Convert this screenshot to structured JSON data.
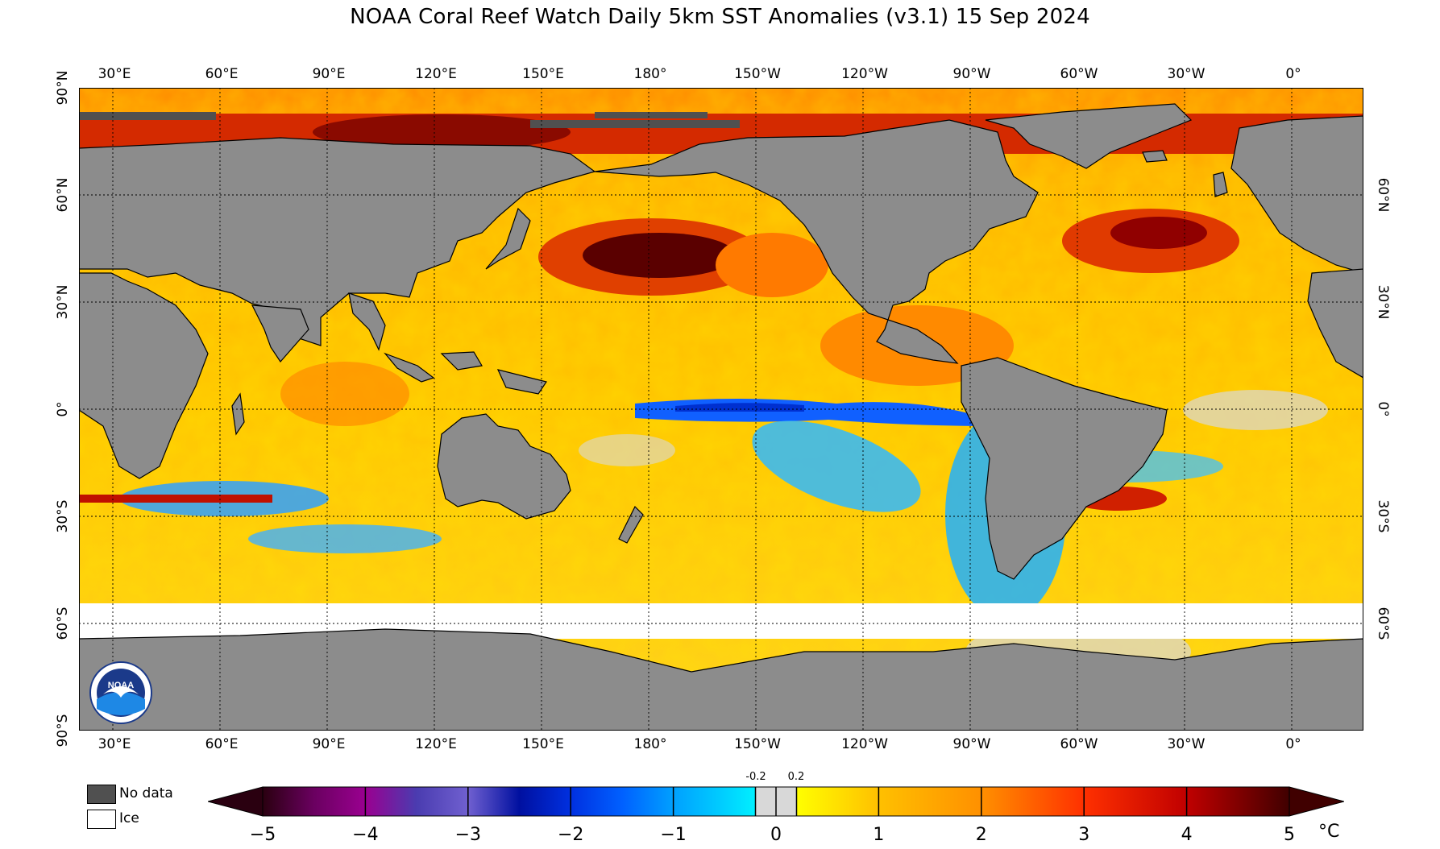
{
  "title": "NOAA Coral Reef Watch Daily 5km SST Anomalies  (v3.1)   15 Sep 2024",
  "map": {
    "lon_labels": [
      "30°E",
      "60°E",
      "90°E",
      "120°E",
      "150°E",
      "180°",
      "150°W",
      "120°W",
      "90°W",
      "60°W",
      "30°W",
      "0°"
    ],
    "lat_labels_left": [
      "90°N",
      "60°N",
      "30°N",
      "0°",
      "30°S",
      "60°S",
      "90°S"
    ],
    "lat_labels_right": [
      "60°N",
      "30°N",
      "0°",
      "30°S",
      "60°S"
    ],
    "colors": {
      "land": "#8c8c8c",
      "no_data": "#505050",
      "ice": "#ffffff",
      "grid": "#000000"
    },
    "logo": {
      "name": "noaa-logo",
      "text": "NOAA"
    }
  },
  "legend": {
    "no_data_label": "No data",
    "ice_label": "Ice"
  },
  "colorbar": {
    "ticks": [
      "−5",
      "−4",
      "−3",
      "−2",
      "−1",
      "0",
      "1",
      "2",
      "3",
      "4",
      "5"
    ],
    "small_ticks": [
      "-0.2",
      "0.2"
    ],
    "unit": "°C",
    "range": [
      -5,
      5
    ],
    "stops": [
      {
        "v": -5,
        "c": "#2a0010"
      },
      {
        "v": -4.5,
        "c": "#6a0060"
      },
      {
        "v": -4,
        "c": "#9a0090"
      },
      {
        "v": -3.5,
        "c": "#4a3cb0"
      },
      {
        "v": -3,
        "c": "#7060d0"
      },
      {
        "v": -2.5,
        "c": "#0010a0"
      },
      {
        "v": -2,
        "c": "#0030e0"
      },
      {
        "v": -1.5,
        "c": "#0060ff"
      },
      {
        "v": -1,
        "c": "#00a0ff"
      },
      {
        "v": -0.5,
        "c": "#00d0ff"
      },
      {
        "v": -0.2,
        "c": "#00f0ff"
      },
      {
        "v": -0.2,
        "c": "#d8d8d8"
      },
      {
        "v": 0.2,
        "c": "#d8d8d8"
      },
      {
        "v": 0.2,
        "c": "#ffff00"
      },
      {
        "v": 1,
        "c": "#ffc000"
      },
      {
        "v": 2,
        "c": "#ff9000"
      },
      {
        "v": 3,
        "c": "#ff3000"
      },
      {
        "v": 4,
        "c": "#c00000"
      },
      {
        "v": 5,
        "c": "#400000"
      }
    ]
  }
}
